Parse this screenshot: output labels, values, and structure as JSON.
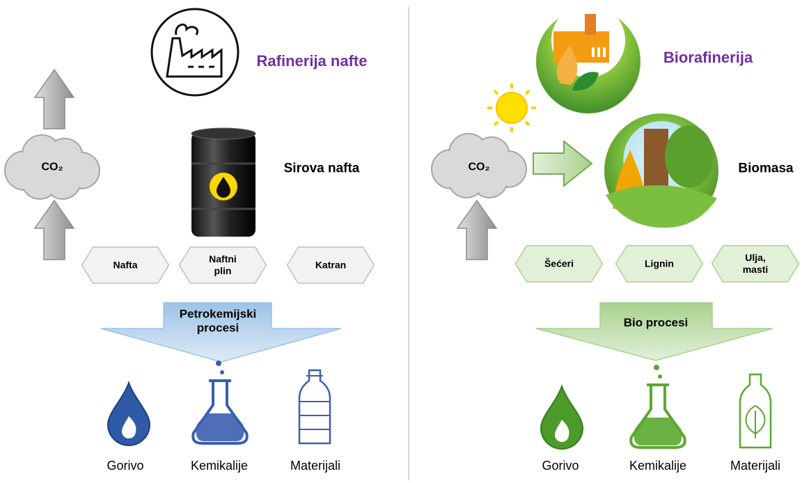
{
  "left": {
    "title": "Rafinerija nafte",
    "co2": "CO₂",
    "source": "Sirova nafta",
    "fractions": [
      "Nafta",
      "Naftni plin",
      "Katran"
    ],
    "process": "Petrokemijski procesi",
    "products": [
      "Gorivo",
      "Kemikalije",
      "Materijali"
    ]
  },
  "right": {
    "title": "Biorafinerija",
    "co2": "CO₂",
    "source": "Biomasa",
    "fractions": [
      "Šećeri",
      "Lignin",
      "Ulja, masti"
    ],
    "process": "Bio procesi",
    "products": [
      "Gorivo",
      "Kemikalije",
      "Materijali"
    ]
  }
}
